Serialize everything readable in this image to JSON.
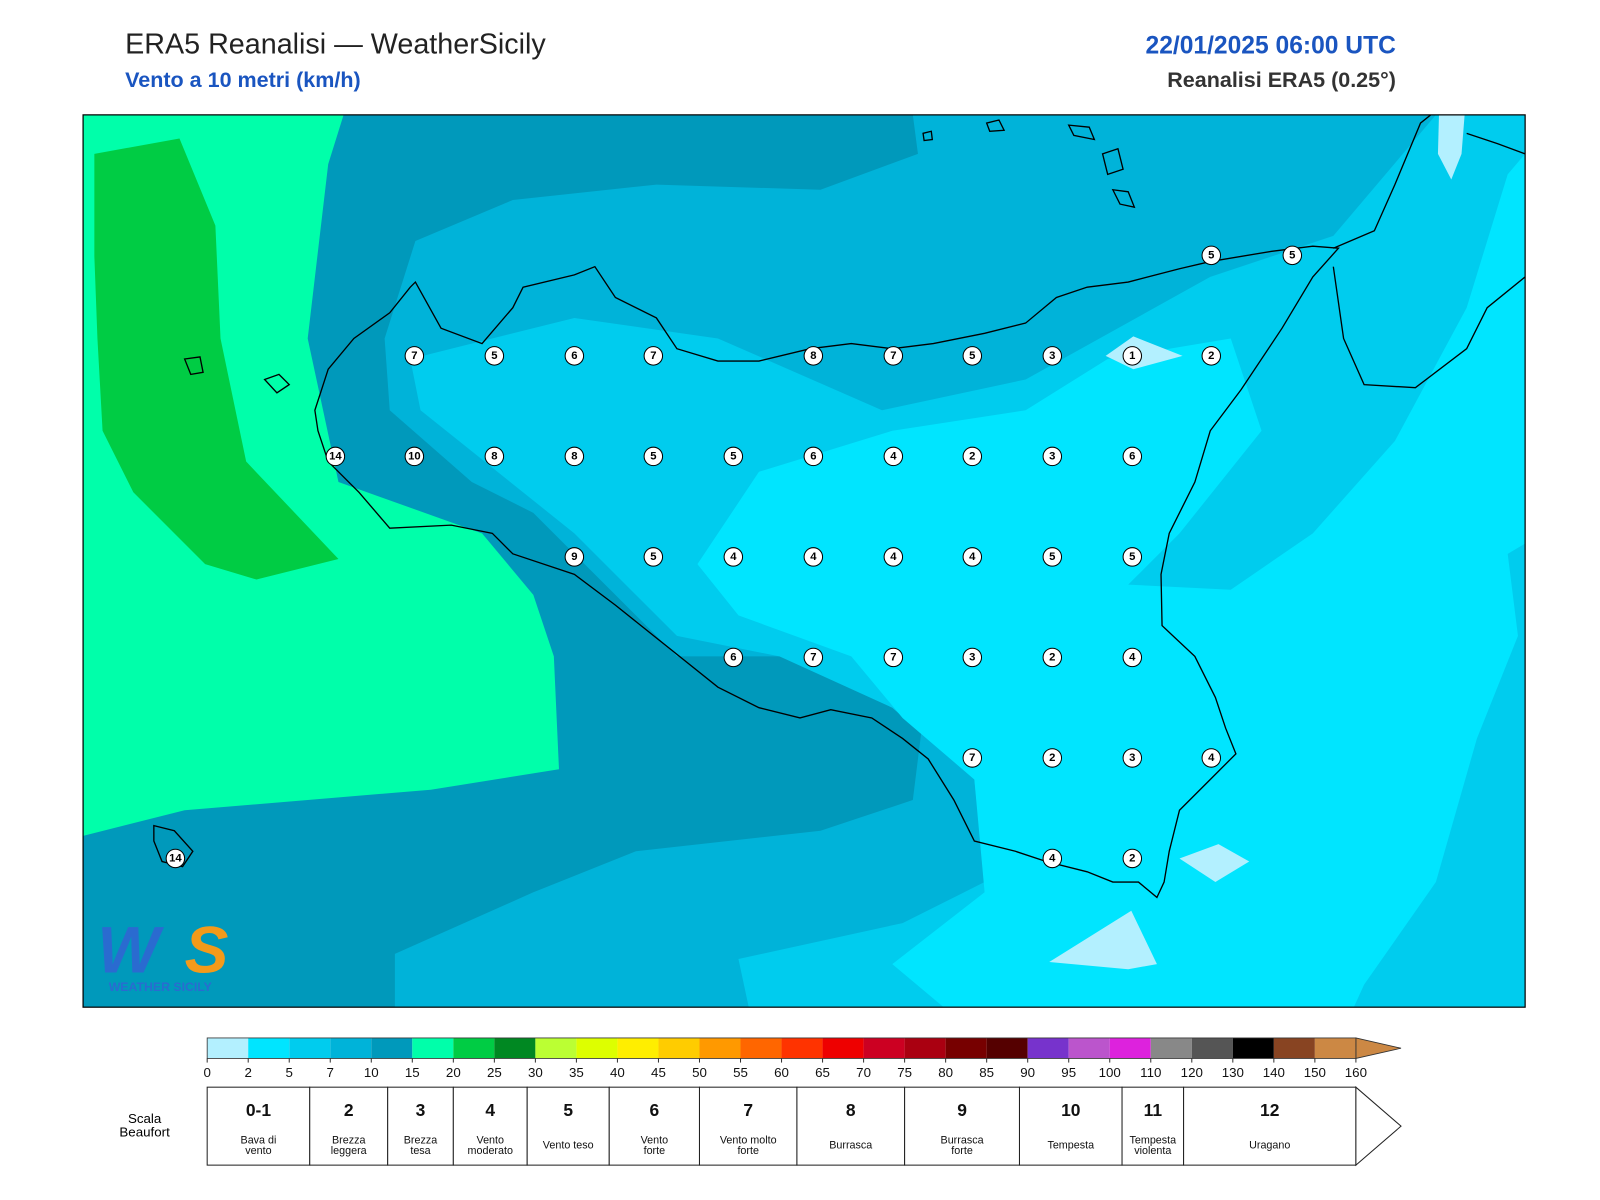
{
  "header": {
    "title": "ERA5 Reanalisi — WeatherSicily",
    "subtitle": "Vento a 10 metri (km/h)",
    "datetime": "22/01/2025 06:00 UTC",
    "source": "Reanalisi ERA5 (0.25°)"
  },
  "map": {
    "stations": [
      5,
      5,
      7,
      5,
      6,
      7,
      8,
      7,
      5,
      3,
      1,
      2,
      14,
      10,
      8,
      8,
      5,
      5,
      6,
      4,
      2,
      3,
      6,
      9,
      5,
      4,
      4,
      4,
      4,
      5,
      5,
      6,
      7,
      7,
      3,
      2,
      4,
      7,
      2,
      3,
      4,
      14,
      4,
      2
    ]
  },
  "logo": {
    "mark": [
      "W",
      "S"
    ],
    "text": "WEATHER SICILY"
  },
  "colorbar": {
    "ticks": [
      0,
      2,
      5,
      7,
      10,
      15,
      20,
      25,
      30,
      35,
      40,
      45,
      50,
      55,
      60,
      65,
      70,
      75,
      80,
      85,
      90,
      95,
      100,
      110,
      120,
      130,
      140,
      150,
      160
    ],
    "colors": [
      "#b3f0ff",
      "#00e5ff",
      "#00ccee",
      "#00b3d9",
      "#0099bb",
      "#00ffaa",
      "#00cc44",
      "#008822",
      "#bbff33",
      "#ddff00",
      "#ffee00",
      "#ffcc00",
      "#ff9900",
      "#ff6600",
      "#ff3300",
      "#ee0000",
      "#cc0022",
      "#aa0011",
      "#770000",
      "#550000",
      "#7733cc",
      "#bb55cc",
      "#dd22dd",
      "#888888",
      "#555555",
      "#000000",
      "#884422",
      "#cc8844"
    ]
  },
  "beaufort": {
    "title": [
      "Scala",
      "Beaufort"
    ],
    "scale": [
      {
        "force": "0-1",
        "label": [
          "Bava di",
          "vento"
        ]
      },
      {
        "force": "2",
        "label": [
          "Brezza",
          "leggera"
        ]
      },
      {
        "force": "3",
        "label": [
          "Brezza",
          "tesa"
        ]
      },
      {
        "force": "4",
        "label": [
          "Vento",
          "moderato"
        ]
      },
      {
        "force": "5",
        "label": [
          "Vento teso"
        ]
      },
      {
        "force": "6",
        "label": [
          "Vento",
          "forte"
        ]
      },
      {
        "force": "7",
        "label": [
          "Vento molto",
          "forte"
        ]
      },
      {
        "force": "8",
        "label": [
          "Burrasca"
        ]
      },
      {
        "force": "9",
        "label": [
          "Burrasca",
          "forte"
        ]
      },
      {
        "force": "10",
        "label": [
          "Tempesta"
        ]
      },
      {
        "force": "11",
        "label": [
          "Tempesta",
          "violenta"
        ]
      },
      {
        "force": "12",
        "label": [
          "Uragano"
        ]
      }
    ]
  }
}
